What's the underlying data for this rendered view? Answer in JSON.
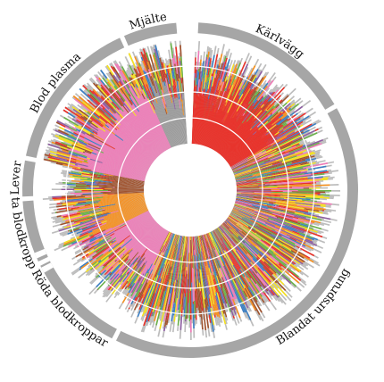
{
  "chart_data": {
    "type": "radial-stacked-bar",
    "title": "",
    "center_hole": true,
    "rings": [
      0.25,
      0.5,
      0.75,
      1.0
    ],
    "components": [
      {
        "key": "red",
        "color": "#e8322a"
      },
      {
        "key": "pink",
        "color": "#f07bb8"
      },
      {
        "key": "orange",
        "color": "#f7901e"
      },
      {
        "key": "yellow",
        "color": "#f6e21f"
      },
      {
        "key": "blue",
        "color": "#3b7fc4"
      },
      {
        "key": "green",
        "color": "#6bb24a"
      },
      {
        "key": "purple",
        "color": "#8e5ea2"
      },
      {
        "key": "brown",
        "color": "#a0522d"
      },
      {
        "key": "gray",
        "color": "#999999"
      }
    ],
    "segments": [
      {
        "label": "Kärlvägg",
        "start_deg": 2,
        "end_deg": 60,
        "dominant": "red",
        "mean_height": 0.82
      },
      {
        "label": "Blandat ursprung",
        "start_deg": 60,
        "end_deg": 207,
        "dominant": "mixed",
        "mean_height": 0.84
      },
      {
        "label": "Röda blodkroppar",
        "start_deg": 207,
        "end_deg": 244,
        "dominant": "pink",
        "mean_height": 0.78
      },
      {
        "label": "Vita blodkroppar",
        "start_deg": 244,
        "end_deg": 267,
        "dominant": "orange",
        "mean_height": 0.8
      },
      {
        "label": "Lever",
        "start_deg": 267,
        "end_deg": 281,
        "dominant": "brown",
        "mean_height": 0.72
      },
      {
        "label": "Blod plasma",
        "start_deg": 281,
        "end_deg": 336,
        "dominant": "pink",
        "mean_height": 0.92
      },
      {
        "label": "Mjälte",
        "start_deg": 336,
        "end_deg": 356,
        "dominant": "gray",
        "mean_height": 0.9
      }
    ],
    "legend": "none",
    "grid": true,
    "colors": {
      "ring": "#a6a6a6",
      "grid": "#ffffff",
      "background": "#ffffff"
    }
  }
}
